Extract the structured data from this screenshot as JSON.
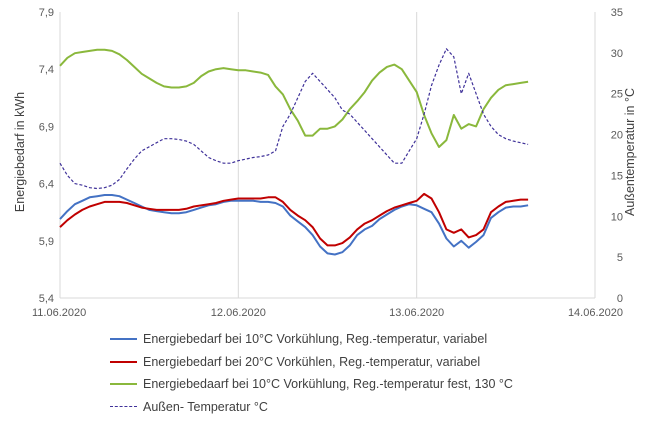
{
  "chart_data": {
    "type": "line",
    "title": "",
    "ylabel_left": "Energiebedarf in kWh",
    "ylabel_right": "Außentemperatur in °C",
    "ylim_left": [
      5.4,
      7.9
    ],
    "ylim_right": [
      0,
      35
    ],
    "yticks_left": [
      "5,4",
      "5,9",
      "6,4",
      "6,9",
      "7,4",
      "7,9"
    ],
    "yticks_right": [
      "0",
      "5",
      "10",
      "15",
      "20",
      "25",
      "30",
      "35"
    ],
    "xlim": [
      0,
      72
    ],
    "xticks": [
      {
        "x": 0,
        "label": "11.06.2020"
      },
      {
        "x": 24,
        "label": "12.06.2020"
      },
      {
        "x": 48,
        "label": "13.06.2020"
      },
      {
        "x": 72,
        "label": "14.06.2020"
      }
    ],
    "grid": "vertical",
    "legend_position": "bottom",
    "series": [
      {
        "name": "Energiebedarf bei 10°C Vorkühlung, Reg.-temperatur, variabel",
        "axis": "left",
        "color": "#4472c4",
        "dash": "solid",
        "points": [
          [
            0,
            6.09
          ],
          [
            1,
            6.16
          ],
          [
            2,
            6.22
          ],
          [
            3,
            6.25
          ],
          [
            4,
            6.28
          ],
          [
            5,
            6.29
          ],
          [
            6,
            6.3
          ],
          [
            7,
            6.3
          ],
          [
            8,
            6.29
          ],
          [
            9,
            6.26
          ],
          [
            10,
            6.23
          ],
          [
            11,
            6.2
          ],
          [
            12,
            6.17
          ],
          [
            13,
            6.16
          ],
          [
            14,
            6.15
          ],
          [
            15,
            6.14
          ],
          [
            16,
            6.14
          ],
          [
            17,
            6.15
          ],
          [
            18,
            6.17
          ],
          [
            19,
            6.19
          ],
          [
            20,
            6.21
          ],
          [
            21,
            6.22
          ],
          [
            22,
            6.24
          ],
          [
            23,
            6.25
          ],
          [
            24,
            6.25
          ],
          [
            25,
            6.25
          ],
          [
            26,
            6.25
          ],
          [
            27,
            6.24
          ],
          [
            28,
            6.24
          ],
          [
            29,
            6.23
          ],
          [
            30,
            6.2
          ],
          [
            31,
            6.12
          ],
          [
            32,
            6.07
          ],
          [
            33,
            6.02
          ],
          [
            34,
            5.95
          ],
          [
            35,
            5.85
          ],
          [
            36,
            5.79
          ],
          [
            37,
            5.78
          ],
          [
            38,
            5.8
          ],
          [
            39,
            5.86
          ],
          [
            40,
            5.95
          ],
          [
            41,
            6.0
          ],
          [
            42,
            6.03
          ],
          [
            43,
            6.09
          ],
          [
            44,
            6.13
          ],
          [
            45,
            6.17
          ],
          [
            46,
            6.2
          ],
          [
            47,
            6.22
          ],
          [
            48,
            6.21
          ],
          [
            49,
            6.18
          ],
          [
            50,
            6.15
          ],
          [
            51,
            6.05
          ],
          [
            52,
            5.92
          ],
          [
            53,
            5.85
          ],
          [
            54,
            5.9
          ],
          [
            55,
            5.84
          ],
          [
            56,
            5.89
          ],
          [
            57,
            5.95
          ],
          [
            58,
            6.1
          ],
          [
            59,
            6.15
          ],
          [
            60,
            6.19
          ],
          [
            61,
            6.2
          ],
          [
            62,
            6.2
          ],
          [
            63,
            6.21
          ]
        ]
      },
      {
        "name": "Energiebedarf bei 20°C Vorkühlen, Reg.-temperatur, variabel",
        "axis": "left",
        "color": "#c00000",
        "dash": "solid",
        "points": [
          [
            0,
            6.02
          ],
          [
            1,
            6.08
          ],
          [
            2,
            6.13
          ],
          [
            3,
            6.17
          ],
          [
            4,
            6.2
          ],
          [
            5,
            6.22
          ],
          [
            6,
            6.24
          ],
          [
            7,
            6.24
          ],
          [
            8,
            6.24
          ],
          [
            9,
            6.23
          ],
          [
            10,
            6.21
          ],
          [
            11,
            6.19
          ],
          [
            12,
            6.18
          ],
          [
            13,
            6.17
          ],
          [
            14,
            6.17
          ],
          [
            15,
            6.17
          ],
          [
            16,
            6.17
          ],
          [
            17,
            6.18
          ],
          [
            18,
            6.2
          ],
          [
            19,
            6.21
          ],
          [
            20,
            6.22
          ],
          [
            21,
            6.23
          ],
          [
            22,
            6.25
          ],
          [
            23,
            6.26
          ],
          [
            24,
            6.27
          ],
          [
            25,
            6.27
          ],
          [
            26,
            6.27
          ],
          [
            27,
            6.27
          ],
          [
            28,
            6.28
          ],
          [
            29,
            6.28
          ],
          [
            30,
            6.24
          ],
          [
            31,
            6.17
          ],
          [
            32,
            6.12
          ],
          [
            33,
            6.08
          ],
          [
            34,
            6.02
          ],
          [
            35,
            5.92
          ],
          [
            36,
            5.86
          ],
          [
            37,
            5.86
          ],
          [
            38,
            5.88
          ],
          [
            39,
            5.93
          ],
          [
            40,
            6.0
          ],
          [
            41,
            6.05
          ],
          [
            42,
            6.08
          ],
          [
            43,
            6.12
          ],
          [
            44,
            6.16
          ],
          [
            45,
            6.19
          ],
          [
            46,
            6.21
          ],
          [
            47,
            6.23
          ],
          [
            48,
            6.25
          ],
          [
            49,
            6.31
          ],
          [
            50,
            6.27
          ],
          [
            51,
            6.15
          ],
          [
            52,
            6.0
          ],
          [
            53,
            5.97
          ],
          [
            54,
            6.0
          ],
          [
            55,
            5.93
          ],
          [
            56,
            5.95
          ],
          [
            57,
            6.0
          ],
          [
            58,
            6.15
          ],
          [
            59,
            6.2
          ],
          [
            60,
            6.24
          ],
          [
            61,
            6.25
          ],
          [
            62,
            6.26
          ],
          [
            63,
            6.26
          ]
        ]
      },
      {
        "name": "Energiebedaarf bei 10°C Vorkühlung, Reg.-temperatur fest, 130 °C",
        "axis": "left",
        "color": "#8ab83c",
        "dash": "solid",
        "points": [
          [
            0,
            7.43
          ],
          [
            1,
            7.5
          ],
          [
            2,
            7.54
          ],
          [
            3,
            7.55
          ],
          [
            4,
            7.56
          ],
          [
            5,
            7.57
          ],
          [
            6,
            7.57
          ],
          [
            7,
            7.56
          ],
          [
            8,
            7.53
          ],
          [
            9,
            7.48
          ],
          [
            10,
            7.42
          ],
          [
            11,
            7.36
          ],
          [
            12,
            7.32
          ],
          [
            13,
            7.28
          ],
          [
            14,
            7.25
          ],
          [
            15,
            7.24
          ],
          [
            16,
            7.24
          ],
          [
            17,
            7.25
          ],
          [
            18,
            7.28
          ],
          [
            19,
            7.34
          ],
          [
            20,
            7.38
          ],
          [
            21,
            7.4
          ],
          [
            22,
            7.41
          ],
          [
            23,
            7.4
          ],
          [
            24,
            7.39
          ],
          [
            25,
            7.39
          ],
          [
            26,
            7.38
          ],
          [
            27,
            7.37
          ],
          [
            28,
            7.35
          ],
          [
            29,
            7.25
          ],
          [
            30,
            7.18
          ],
          [
            31,
            7.05
          ],
          [
            32,
            6.95
          ],
          [
            33,
            6.82
          ],
          [
            34,
            6.82
          ],
          [
            35,
            6.88
          ],
          [
            36,
            6.88
          ],
          [
            37,
            6.9
          ],
          [
            38,
            6.96
          ],
          [
            39,
            7.05
          ],
          [
            40,
            7.12
          ],
          [
            41,
            7.2
          ],
          [
            42,
            7.3
          ],
          [
            43,
            7.37
          ],
          [
            44,
            7.42
          ],
          [
            45,
            7.44
          ],
          [
            46,
            7.4
          ],
          [
            47,
            7.3
          ],
          [
            48,
            7.2
          ],
          [
            49,
            7.0
          ],
          [
            50,
            6.84
          ],
          [
            51,
            6.72
          ],
          [
            52,
            6.78
          ],
          [
            53,
            7.0
          ],
          [
            54,
            6.88
          ],
          [
            55,
            6.92
          ],
          [
            56,
            6.9
          ],
          [
            57,
            7.05
          ],
          [
            58,
            7.15
          ],
          [
            59,
            7.22
          ],
          [
            60,
            7.26
          ],
          [
            61,
            7.27
          ],
          [
            62,
            7.28
          ],
          [
            63,
            7.29
          ]
        ]
      },
      {
        "name": "Außen- Temperatur °C",
        "axis": "right",
        "color": "#3f3199",
        "dash": "dashed",
        "points": [
          [
            0,
            16.5
          ],
          [
            1,
            15.0
          ],
          [
            2,
            14.0
          ],
          [
            3,
            13.8
          ],
          [
            4,
            13.5
          ],
          [
            5,
            13.4
          ],
          [
            6,
            13.5
          ],
          [
            7,
            13.8
          ],
          [
            8,
            14.5
          ],
          [
            9,
            15.8
          ],
          [
            10,
            17.0
          ],
          [
            11,
            18.0
          ],
          [
            12,
            18.5
          ],
          [
            13,
            19.0
          ],
          [
            14,
            19.5
          ],
          [
            15,
            19.5
          ],
          [
            16,
            19.4
          ],
          [
            17,
            19.2
          ],
          [
            18,
            18.8
          ],
          [
            19,
            18.0
          ],
          [
            20,
            17.2
          ],
          [
            21,
            16.8
          ],
          [
            22,
            16.5
          ],
          [
            23,
            16.5
          ],
          [
            24,
            16.8
          ],
          [
            25,
            17.0
          ],
          [
            26,
            17.2
          ],
          [
            27,
            17.3
          ],
          [
            28,
            17.5
          ],
          [
            29,
            18.0
          ],
          [
            30,
            21.0
          ],
          [
            31,
            22.5
          ],
          [
            32,
            24.5
          ],
          [
            33,
            26.5
          ],
          [
            34,
            27.5
          ],
          [
            35,
            26.5
          ],
          [
            36,
            25.5
          ],
          [
            37,
            24.5
          ],
          [
            38,
            23.0
          ],
          [
            39,
            22.5
          ],
          [
            40,
            21.5
          ],
          [
            41,
            20.5
          ],
          [
            42,
            19.5
          ],
          [
            43,
            18.5
          ],
          [
            44,
            17.5
          ],
          [
            45,
            16.5
          ],
          [
            46,
            16.5
          ],
          [
            47,
            18.0
          ],
          [
            48,
            19.5
          ],
          [
            49,
            22.5
          ],
          [
            50,
            26.0
          ],
          [
            51,
            28.5
          ],
          [
            52,
            30.5
          ],
          [
            53,
            29.5
          ],
          [
            54,
            25.0
          ],
          [
            55,
            27.5
          ],
          [
            56,
            25.0
          ],
          [
            57,
            22.5
          ],
          [
            58,
            21.0
          ],
          [
            59,
            20.0
          ],
          [
            60,
            19.5
          ],
          [
            61,
            19.2
          ],
          [
            62,
            19.0
          ],
          [
            63,
            18.8
          ]
        ]
      }
    ]
  }
}
